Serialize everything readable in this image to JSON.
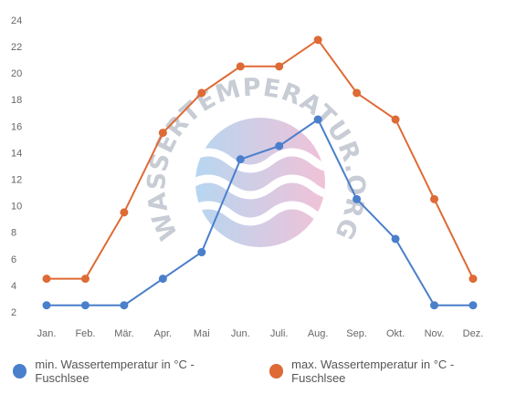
{
  "chart_data": {
    "type": "line",
    "categories": [
      "Jan.",
      "Feb.",
      "Mär.",
      "Apr.",
      "Mai",
      "Jun.",
      "Juli.",
      "Aug.",
      "Sep.",
      "Okt.",
      "Nov.",
      "Dez."
    ],
    "series": [
      {
        "name": "min. Wassertemperatur in °C - Fuschlsee",
        "color": "#4a7fcb",
        "values": [
          2.5,
          2.5,
          2.5,
          4.5,
          6.5,
          13.5,
          14.5,
          16.5,
          10.5,
          7.5,
          2.5,
          2.5
        ]
      },
      {
        "name": "max. Wassertemperatur in °C - Fuschlsee",
        "color": "#de6a35",
        "values": [
          4.5,
          4.5,
          9.5,
          15.5,
          18.5,
          20.5,
          20.5,
          22.5,
          18.5,
          16.5,
          10.5,
          4.5
        ]
      }
    ],
    "yticks": [
      2,
      4,
      6,
      8,
      10,
      12,
      14,
      16,
      18,
      20,
      22,
      24
    ],
    "ylim": [
      2,
      24
    ],
    "grid": false,
    "legend_position": "bottom"
  },
  "watermark": {
    "text": "WASSERTEMPERATUR.ORG"
  }
}
